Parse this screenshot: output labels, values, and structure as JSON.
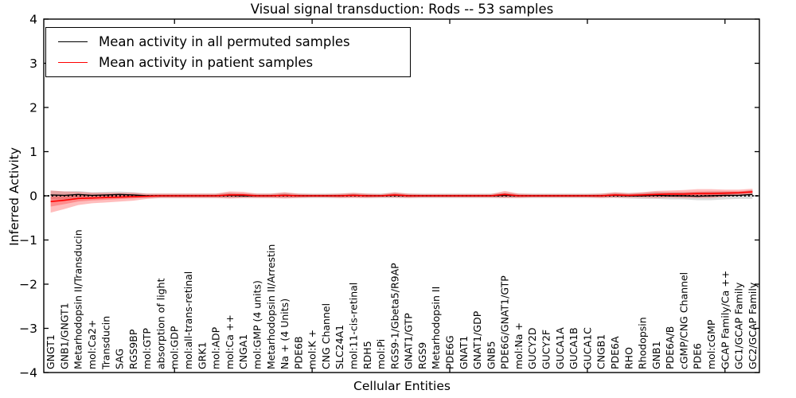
{
  "title": "Visual signal transduction: Rods -- 53 samples",
  "legend": {
    "entries": [
      {
        "label": "Mean activity in all permuted samples",
        "color": "#000000"
      },
      {
        "label": "Mean activity in patient samples",
        "color": "#ff0000"
      }
    ]
  },
  "chart_data": {
    "type": "line",
    "title": "Visual signal transduction: Rods -- 53 samples",
    "xlabel": "Cellular Entities",
    "ylabel": "Inferred Activity",
    "ylim": [
      -4,
      4
    ],
    "yticks": [
      4,
      3,
      2,
      1,
      0,
      -1,
      -2,
      -3,
      -4
    ],
    "ytick_labels": [
      "4",
      "3",
      "2",
      "1",
      "0",
      "−1",
      "−2",
      "−3",
      "−4"
    ],
    "xtick_indices": [
      9,
      19,
      29,
      39,
      49
    ],
    "grid": false,
    "legend_position": "upper left",
    "zero_line": {
      "style": "dotted",
      "color": "#000000",
      "y": 0
    },
    "categories": [
      "GNGT1",
      "GNB1/GNGT1",
      "Metarhodopsin II/Transducin",
      "mol:Ca2+",
      "Transducin",
      "SAG",
      "RGS9BP",
      "mol:GTP",
      "absorption of light",
      "mol:GDP",
      "mol:all-trans-retinal",
      "GRK1",
      "mol:ADP",
      "mol:Ca ++",
      "CNGA1",
      "mol:GMP (4 units)",
      "Metarhodopsin II/Arrestin",
      "Na + (4 Units)",
      "PDE6B",
      "mol:K +",
      "CNG Channel",
      "SLC24A1",
      "mol:11-cis-retinal",
      "RDH5",
      "mol:Pi",
      "RGS9-1/Gbeta5/R9AP",
      "GNAT1/GTP",
      "RGS9",
      "Metarhodopsin II",
      "PDE6G",
      "GNAT1",
      "GNAT1/GDP",
      "GNB5",
      "PDE6G/GNAT1/GTP",
      "mol:Na +",
      "GUCY2D",
      "GUCY2F",
      "GUCA1A",
      "GUCA1B",
      "GUCA1C",
      "CNGB1",
      "PDE6A",
      "RHO",
      "Rhodopsin",
      "GNB1",
      "PDE6A/B",
      "cGMP/CNG Channel",
      "PDE6",
      "mol:cGMP",
      "GCAP Family/Ca ++",
      "GC1/GCAP Family",
      "GC2/GCAP Family"
    ],
    "series": [
      {
        "name": "Mean activity in all permuted samples",
        "color": "#000000",
        "values": [
          0.02,
          0.01,
          0.03,
          0.01,
          0.02,
          0.03,
          0.02,
          0.0,
          0.0,
          0.0,
          0.0,
          0.0,
          0.0,
          0.01,
          0.0,
          0.0,
          0.0,
          0.01,
          0.0,
          0.0,
          0.0,
          0.0,
          0.01,
          0.0,
          0.0,
          0.01,
          0.0,
          0.0,
          0.0,
          0.0,
          0.0,
          0.0,
          0.0,
          0.01,
          0.0,
          0.0,
          0.0,
          0.0,
          0.0,
          0.0,
          0.0,
          0.01,
          0.0,
          0.0,
          0.01,
          0.0,
          0.0,
          -0.01,
          0.0,
          0.01,
          0.01,
          0.03
        ],
        "band_halfwidth": [
          0.1,
          0.09,
          0.08,
          0.07,
          0.07,
          0.07,
          0.06,
          0.05,
          0.05,
          0.05,
          0.05,
          0.05,
          0.05,
          0.06,
          0.05,
          0.05,
          0.05,
          0.06,
          0.05,
          0.05,
          0.05,
          0.05,
          0.05,
          0.05,
          0.05,
          0.06,
          0.05,
          0.05,
          0.05,
          0.05,
          0.05,
          0.05,
          0.05,
          0.06,
          0.05,
          0.05,
          0.05,
          0.05,
          0.05,
          0.05,
          0.05,
          0.06,
          0.06,
          0.07,
          0.08,
          0.08,
          0.08,
          0.09,
          0.1,
          0.09,
          0.08,
          0.1
        ],
        "band_color": "rgba(0,0,0,0.14)"
      },
      {
        "name": "Mean activity in patient samples",
        "color": "#ff0000",
        "values": [
          -0.13,
          -0.1,
          -0.06,
          -0.05,
          -0.04,
          -0.03,
          -0.02,
          -0.01,
          0.0,
          0.0,
          0.0,
          0.0,
          0.0,
          0.02,
          0.02,
          0.0,
          0.0,
          0.01,
          0.0,
          0.0,
          0.0,
          0.0,
          0.01,
          0.0,
          0.0,
          0.02,
          0.0,
          0.0,
          0.0,
          0.0,
          0.0,
          0.0,
          0.0,
          0.03,
          0.0,
          0.0,
          0.0,
          0.0,
          0.0,
          0.0,
          0.0,
          0.02,
          0.01,
          0.02,
          0.03,
          0.04,
          0.04,
          0.05,
          0.05,
          0.06,
          0.07,
          0.09
        ],
        "band_halfwidth": [
          0.25,
          0.2,
          0.15,
          0.12,
          0.11,
          0.1,
          0.09,
          0.06,
          0.05,
          0.05,
          0.05,
          0.05,
          0.05,
          0.08,
          0.07,
          0.05,
          0.05,
          0.07,
          0.05,
          0.04,
          0.04,
          0.05,
          0.06,
          0.05,
          0.04,
          0.06,
          0.05,
          0.04,
          0.04,
          0.04,
          0.04,
          0.04,
          0.04,
          0.08,
          0.05,
          0.04,
          0.04,
          0.04,
          0.04,
          0.04,
          0.05,
          0.06,
          0.05,
          0.06,
          0.08,
          0.08,
          0.09,
          0.1,
          0.1,
          0.08,
          0.07,
          0.07
        ],
        "band_color": "rgba(255,0,0,0.26)"
      }
    ]
  }
}
